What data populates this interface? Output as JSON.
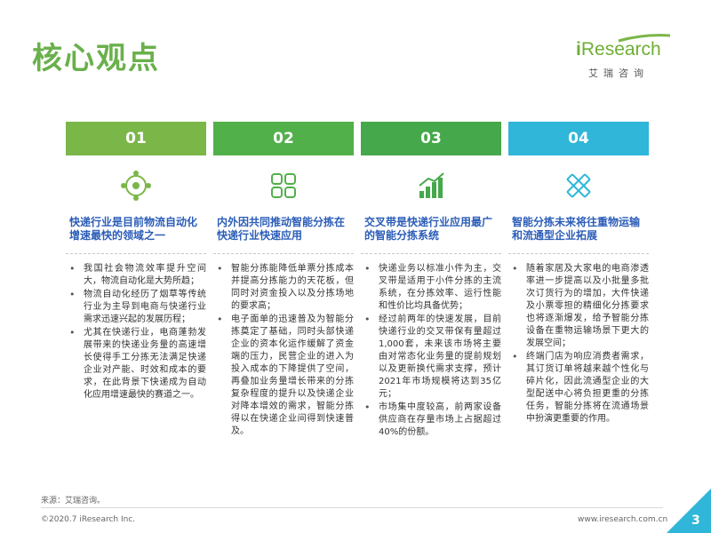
{
  "title": "核心观点",
  "logo": {
    "brand_i": "i",
    "brand_rest": "Research",
    "sub": "艾瑞咨询"
  },
  "colors": {
    "green_dark": "#7ab648",
    "green_mid": "#52b04a",
    "green_light": "#45a84a",
    "teal": "#2fb6d8",
    "heading_blue": "#2b5db8"
  },
  "columns": [
    {
      "num": "01",
      "icon": "network-icon",
      "heading": "快递行业是目前物流自动化增速最快的领域之一",
      "items": [
        "我国社会物流效率提升空间大，物流自动化是大势所趋；",
        "物流自动化经历了烟草等传统行业为主导到电商与快递行业需求迅速兴起的发展历程；",
        "尤其在快递行业，电商蓬勃发展带来的快递业务量的高速增长使得手工分拣无法满足快递企业对产能、时效和成本的要求，在此背景下快递成为自动化应用增速最快的赛道之一。"
      ]
    },
    {
      "num": "02",
      "icon": "grid-icon",
      "heading": "内外因共同推动智能分拣在快递行业快速应用",
      "items": [
        "智能分拣能降低单票分拣成本并提高分拣能力的天花板，但同时对资金投入以及分拣场地的要求高；",
        "电子面单的迅速普及为智能分拣奠定了基础，同时头部快递企业的资本化运作缓解了资金端的压力，民营企业的进入为投入成本的下降提供了空间，再叠加业务量增长带来的分拣复杂程度的提升以及快递企业对降本增效的需求，智能分拣得以在快递企业间得到快速普及。"
      ]
    },
    {
      "num": "03",
      "icon": "bar-chart-icon",
      "heading": "交叉带是快递行业应用最广的智能分拣系统",
      "items": [
        "快递业务以标准小件为主，交叉带是适用于小件分拣的主流系统，在分拣效率、运行性能和性价比均具备优势；",
        "经过前两年的快速发展，目前快递行业的交叉带保有量超过1,000套，未来该市场将主要由对常态化业务量的提前规划以及更新换代需求支撑，预计2021年市场规模将达到35亿元；",
        "市场集中度较高，前两家设备供应商在存量市场上占据超过40%的份额。"
      ]
    },
    {
      "num": "04",
      "icon": "pencil-ruler-icon",
      "heading": "智能分拣未来将往重物运输和流通型企业拓展",
      "items": [
        "随着家居及大家电的电商渗透率进一步提高以及小批量多批次订货行为的增加，大件快递及小票零担的精细化分拣要求也将逐渐爆发，给予智能分拣设备在重物运输场景下更大的发展空间；",
        "终端门店为响应消费者需求，其订货订单将越来越个性化与碎片化，因此流通型企业的大型配送中心将负担更重的分拣任务，智能分拣将在流通场景中扮演更重要的作用。"
      ]
    }
  ],
  "footer": {
    "source": "来源：艾瑞咨询。",
    "copyright": "©2020.7 iResearch Inc.",
    "website": "www.iresearch.com.cn",
    "page": "3"
  }
}
